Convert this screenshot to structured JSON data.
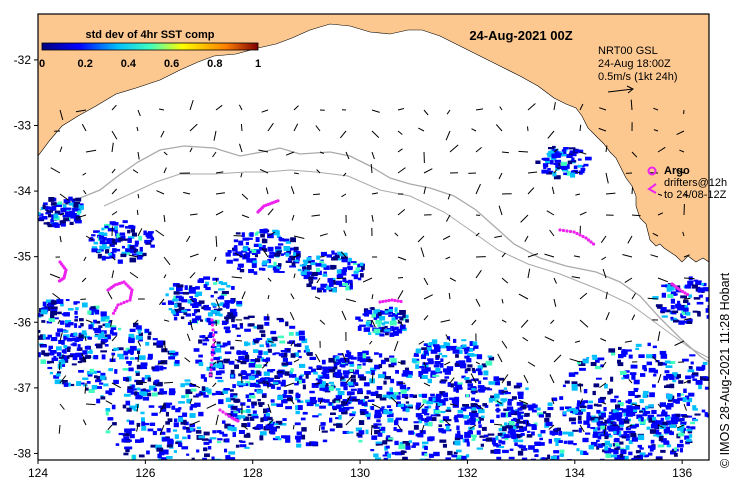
{
  "map": {
    "colorbar": {
      "title": "std dev of 4hr SST comp",
      "ticks": [
        "0",
        "0.2",
        "0.4",
        "0.6",
        "0.8",
        "1"
      ],
      "colors": [
        "#00007f",
        "#0000ff",
        "#00bfff",
        "#40ffbf",
        "#ffff00",
        "#ff8000",
        "#7f0000"
      ]
    },
    "date_label": "24-Aug-2021 00Z",
    "current_info": {
      "line1": "NRT00 GSL",
      "line2": "24-Aug 18:00Z",
      "line3": "0.5m/s (1kt 24h)"
    },
    "legend": {
      "argo": "Argo",
      "drifters_line1": "drifters@12h",
      "drifters_line2": "to 24/08-12Z",
      "argo_color": "#ee22ee"
    },
    "credit": "© IMOS 28-Aug-2021 11:28 Hobart",
    "axes": {
      "x_ticks": [
        "124",
        "126",
        "128",
        "130",
        "132",
        "134",
        "136"
      ],
      "y_ticks": [
        "-32",
        "-33",
        "-34",
        "-35",
        "-36",
        "-37",
        "-38"
      ],
      "xlim": [
        124,
        136.5
      ],
      "ylim": [
        -38.1,
        -31.3
      ]
    },
    "colors": {
      "land": "#fcc890",
      "sea": "#ffffff",
      "isobath": "#aaaaaa",
      "frame": "#000000"
    }
  }
}
